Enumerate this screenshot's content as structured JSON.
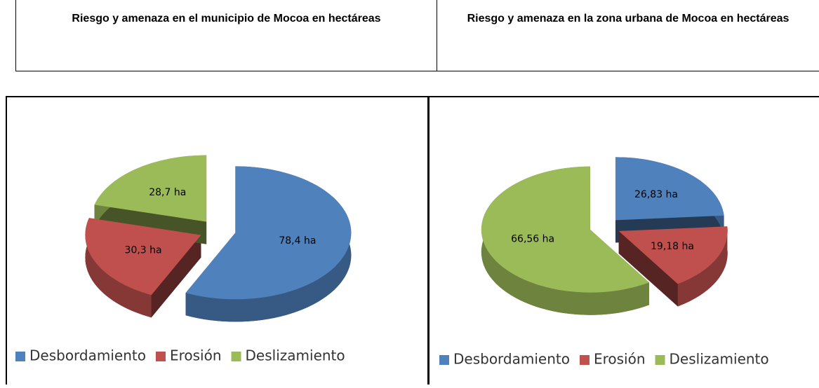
{
  "chart_data": [
    {
      "type": "pie",
      "title": "Riesgo y amenaza en el municipio de Mocoa en hectáreas",
      "categories": [
        "Desbordamiento",
        "Erosión",
        "Deslizamiento"
      ],
      "values": [
        78.4,
        30.3,
        28.7
      ],
      "value_labels": [
        "78,4 ha",
        "30,3 ha",
        "28,7 ha"
      ],
      "colors": [
        "#4f81bd",
        "#c0504d",
        "#9bbb59"
      ],
      "legend": "bottom"
    },
    {
      "type": "pie",
      "title": "Riesgo y amenaza en la zona urbana de Mocoa en hectáreas",
      "categories": [
        "Desbordamiento",
        "Erosión",
        "Deslizamiento"
      ],
      "values": [
        26.83,
        19.18,
        66.56
      ],
      "value_labels": [
        "26,83 ha",
        "19,18 ha",
        "66,56 ha"
      ],
      "colors": [
        "#4f81bd",
        "#c0504d",
        "#9bbb59"
      ],
      "legend": "bottom"
    }
  ]
}
